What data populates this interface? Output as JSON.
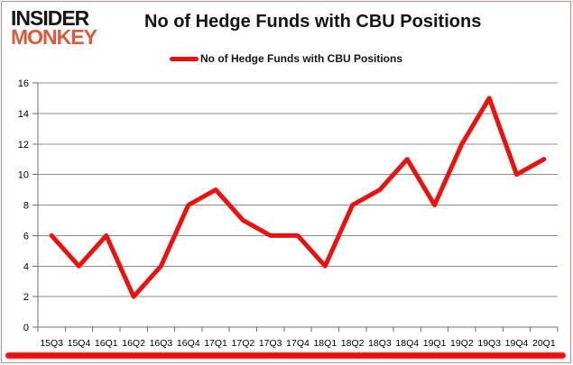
{
  "header": {
    "logo": {
      "line1": "INSIDER",
      "line2": "MONKEY"
    },
    "title": "No of Hedge Funds with CBU Positions"
  },
  "legend": {
    "label": "No of Hedge Funds with CBU Positions",
    "swatch_color": "#ee100c"
  },
  "colors": {
    "series_red": "#ee100c",
    "logo_monkey": "#dc5a3c",
    "gridline": "#8c8c8c",
    "axis": "#6e6e6e",
    "accent_bottom_bar": "#e8100c"
  },
  "chart_data": {
    "type": "line",
    "title": "No of Hedge Funds with CBU Positions",
    "categories": [
      "15Q3",
      "15Q4",
      "16Q1",
      "16Q2",
      "16Q3",
      "16Q4",
      "17Q1",
      "17Q2",
      "17Q3",
      "17Q4",
      "18Q1",
      "18Q2",
      "18Q3",
      "18Q4",
      "19Q1",
      "19Q2",
      "19Q3",
      "19Q4",
      "20Q1"
    ],
    "series": [
      {
        "name": "No of Hedge Funds with CBU Positions",
        "values": [
          6,
          4,
          6,
          2,
          4,
          8,
          9,
          7,
          6,
          6,
          4,
          8,
          9,
          11,
          8,
          12,
          15,
          10,
          11
        ],
        "color": "#ee100c"
      }
    ],
    "xlabel": "",
    "ylabel": "",
    "ylim": [
      0,
      16
    ],
    "yticks": [
      0,
      2,
      4,
      6,
      8,
      10,
      12,
      14,
      16
    ],
    "grid": true,
    "legend_position": "top"
  }
}
